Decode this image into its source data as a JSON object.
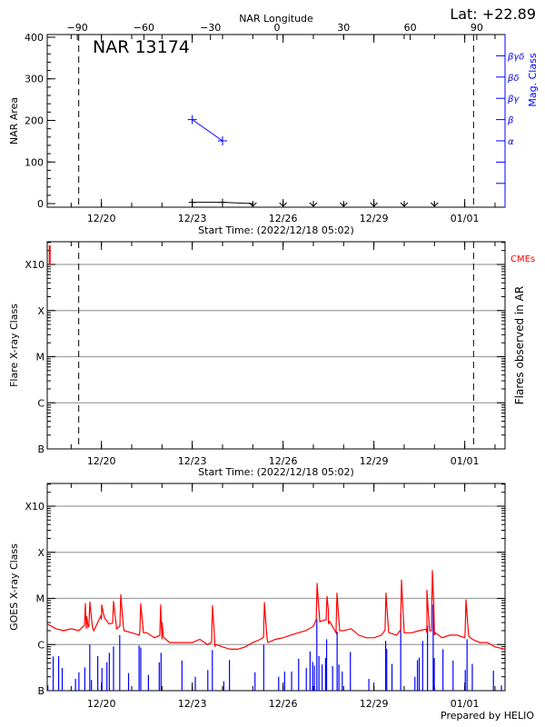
{
  "header": {
    "latitude": "Lat: +22.89",
    "region_title": "NAR 13174",
    "credit": "Prepared by HELIO"
  },
  "colors": {
    "area": "#000000",
    "mag_class": "#0000ff",
    "goes_long": "#ff0000",
    "goes_short": "#0000ff",
    "cme": "#ff0000",
    "grid": "#a0a0a0"
  },
  "chart_data": [
    {
      "type": "line",
      "title": "NAR 13174",
      "ylabel": "NAR Area",
      "xlabel": "Start Time: (2022/12/18 05:02)",
      "top_axis_label": "NAR Longitude",
      "top_axis_ticks": [
        "-90",
        "-60",
        "-30",
        "0",
        "30",
        "60",
        "90"
      ],
      "right_axis_label": "Mag. Class",
      "right_axis_ticks": [
        "α",
        "β",
        "βγ",
        "βδ",
        "βγδ"
      ],
      "x_ticks": [
        "12/20",
        "12/23",
        "12/26",
        "12/29",
        "01/01"
      ],
      "y_ticks": [
        "0",
        "100",
        "200",
        "300",
        "400"
      ],
      "ylim": [
        -8.7,
        406.5
      ],
      "limb_lines": [
        "12/19 06:00",
        "01/01 07:00"
      ],
      "area_series": [
        {
          "t": "12/23 00:00",
          "v": 3
        },
        {
          "t": "12/24 00:00",
          "v": 3
        },
        {
          "t": "12/25 00:00",
          "v": 0
        }
      ],
      "area_zero_markers": [
        "12/25 00:00",
        "12/26 00:00",
        "12/27 00:00",
        "12/28 00:00",
        "12/29 00:00",
        "12/30 00:00",
        "12/31 00:00"
      ],
      "mag_class_series": [
        {
          "t": "12/23 00:00",
          "class": "β"
        },
        {
          "t": "12/24 00:00",
          "class": "α"
        }
      ],
      "grid": false
    },
    {
      "type": "scatter",
      "ylabel": "Flare X-ray Class",
      "right_label": "Flares observed in AR",
      "cme_label": "CMEs",
      "xlabel": "Start Time: (2022/12/18 05:02)",
      "x_ticks": [
        "12/20",
        "12/23",
        "12/26",
        "12/29",
        "01/01"
      ],
      "y_ticks": [
        "B",
        "C",
        "M",
        "X",
        "X10"
      ],
      "ylim": [
        1e-07,
        0.0031
      ],
      "log_scale": true,
      "limb_lines": [
        "12/19 06:00",
        "01/01 07:00"
      ],
      "flares": [],
      "cmes": [
        "12/18 07:00"
      ],
      "grid": true
    },
    {
      "type": "line",
      "ylabel": "GOES X-ray Class",
      "x_ticks": [
        "12/20",
        "12/23",
        "12/26",
        "12/29",
        "01/01"
      ],
      "y_ticks": [
        "B",
        "C",
        "M",
        "X",
        "X10"
      ],
      "ylim": [
        1e-07,
        0.0031
      ],
      "log_scale": true,
      "grid": true,
      "series": [
        {
          "channel": "long",
          "points": [
            [
              "12/18 05:02",
              2.8e-06
            ],
            [
              "12/18 12:00",
              2.2e-06
            ],
            [
              "12/18 18:00",
              2e-06
            ],
            [
              "12/19 00:00",
              2.2e-06
            ],
            [
              "12/19 06:00",
              2e-06
            ],
            [
              "12/19 12:00",
              2.2e-06
            ],
            [
              "12/19 18:00",
              2e-06
            ],
            [
              "12/20 00:00",
              3.5e-06
            ],
            [
              "12/20 06:00",
              2.8e-06
            ],
            [
              "12/20 12:00",
              2.2e-06
            ],
            [
              "12/20 18:00",
              2e-06
            ],
            [
              "12/21 00:00",
              1.8e-06
            ],
            [
              "12/21 06:00",
              1.6e-06
            ],
            [
              "12/21 12:00",
              1.8e-06
            ],
            [
              "12/21 18:00",
              1.4e-06
            ],
            [
              "12/22 00:00",
              1.3e-06
            ],
            [
              "12/22 06:00",
              1.1e-06
            ],
            [
              "12/22 12:00",
              1.1e-06
            ],
            [
              "12/22 18:00",
              1.1e-06
            ],
            [
              "12/23 00:00",
              1.1e-06
            ],
            [
              "12/23 06:00",
              1.3e-06
            ],
            [
              "12/23 12:00",
              1e-06
            ],
            [
              "12/23 18:00",
              8.9e-07
            ],
            [
              "12/24 00:00",
              8.9e-07
            ],
            [
              "12/24 06:00",
              7.9e-07
            ],
            [
              "12/24 12:00",
              7.9e-07
            ],
            [
              "12/24 18:00",
              8.9e-07
            ],
            [
              "12/25 00:00",
              1.1e-06
            ],
            [
              "12/25 06:00",
              1.3e-06
            ],
            [
              "12/25 12:00",
              1.1e-06
            ],
            [
              "12/25 18:00",
              1.3e-06
            ],
            [
              "12/26 00:00",
              1.4e-06
            ],
            [
              "12/26 06:00",
              1.6e-06
            ],
            [
              "12/26 12:00",
              1.8e-06
            ],
            [
              "12/26 18:00",
              2e-06
            ],
            [
              "12/27 00:00",
              2.5e-06
            ],
            [
              "12/27 06:00",
              3.2e-06
            ],
            [
              "12/27 12:00",
              2.8e-06
            ],
            [
              "12/27 18:00",
              1.8e-06
            ],
            [
              "12/28 00:00",
              2e-06
            ],
            [
              "12/28 06:00",
              2.2e-06
            ],
            [
              "12/28 12:00",
              1.6e-06
            ],
            [
              "12/28 18:00",
              1.4e-06
            ],
            [
              "12/29 00:00",
              1.4e-06
            ],
            [
              "12/29 06:00",
              1.6e-06
            ],
            [
              "12/29 12:00",
              1.8e-06
            ],
            [
              "12/29 18:00",
              1.6e-06
            ],
            [
              "12/30 00:00",
              1.8e-06
            ],
            [
              "12/30 06:00",
              1.8e-06
            ],
            [
              "12/30 12:00",
              2e-06
            ],
            [
              "12/30 18:00",
              1.8e-06
            ],
            [
              "12/31 00:00",
              1.6e-06
            ],
            [
              "12/31 06:00",
              1.4e-06
            ],
            [
              "12/31 12:00",
              1.6e-06
            ],
            [
              "12/31 18:00",
              1.6e-06
            ],
            [
              "01/01 00:00",
              1.4e-06
            ],
            [
              "01/01 06:00",
              1.3e-06
            ],
            [
              "01/01 12:00",
              1.1e-06
            ],
            [
              "01/01 18:00",
              1.1e-06
            ],
            [
              "01/02 00:00",
              8.9e-07
            ],
            [
              "01/02 08:00",
              7.9e-07
            ]
          ],
          "peaks": [
            [
              "12/19 11:15",
              7.7e-06
            ],
            [
              "12/19 14:50",
              8.3e-06
            ],
            [
              "12/20 00:15",
              7.2e-06
            ],
            [
              "12/20 09:35",
              8.6e-06
            ],
            [
              "12/20 15:20",
              1.2e-05
            ],
            [
              "12/21 07:10",
              7.7e-06
            ],
            [
              "12/21 23:00",
              7.2e-06
            ],
            [
              "12/23 16:00",
              6.9e-06
            ],
            [
              "12/25 09:10",
              8.1e-06
            ],
            [
              "12/27 03:00",
              2.1e-05
            ],
            [
              "12/27 10:50",
              1.1e-05
            ],
            [
              "12/27 18:45",
              1.3e-05
            ],
            [
              "12/29 09:35",
              1.3e-05
            ],
            [
              "12/29 21:50",
              2.5e-05
            ],
            [
              "12/30 18:00",
              1.5e-05
            ],
            [
              "12/30 22:20",
              4e-05
            ],
            [
              "01/01 01:00",
              9.3e-06
            ]
          ]
        },
        {
          "channel": "short",
          "bars": [
            [
              "12/18 05:30",
              1.3e-07
            ],
            [
              "12/18 09:45",
              5.5e-07
            ],
            [
              "12/18 14:05",
              5.6e-07
            ],
            [
              "12/18 16:55",
              3.1e-07
            ],
            [
              "12/19 03:25",
              1.8e-07
            ],
            [
              "12/19 06:10",
              2.5e-07
            ],
            [
              "12/19 10:50",
              3.2e-07
            ],
            [
              "12/19 14:45",
              1e-06
            ],
            [
              "12/19 16:05",
              1.7e-07
            ],
            [
              "12/19 21:05",
              5.6e-07
            ],
            [
              "12/20 00:25",
              3.1e-07
            ],
            [
              "12/20 04:20",
              4.1e-07
            ],
            [
              "12/20 06:15",
              6.6e-07
            ],
            [
              "12/20 09:35",
              9.1e-07
            ],
            [
              "12/20 14:30",
              1.6e-06
            ],
            [
              "12/20 21:30",
              2.4e-07
            ],
            [
              "12/21 05:50",
              9.5e-07
            ],
            [
              "12/21 07:10",
              8.6e-07
            ],
            [
              "12/21 13:15",
              2.2e-07
            ],
            [
              "12/21 21:50",
              4.1e-07
            ],
            [
              "12/21 23:15",
              6.6e-07
            ],
            [
              "12/22 15:50",
              4.5e-07
            ],
            [
              "12/23 02:25",
              2e-07
            ],
            [
              "12/23 12:20",
              2.8e-07
            ],
            [
              "12/23 15:55",
              7.6e-07
            ],
            [
              "12/24 01:00",
              1.6e-07
            ],
            [
              "12/24 05:30",
              4.6e-07
            ],
            [
              "12/25 01:45",
              2.5e-07
            ],
            [
              "12/25 08:40",
              1e-06
            ],
            [
              "12/25 20:30",
              2e-07
            ],
            [
              "12/26 01:15",
              2.6e-07
            ],
            [
              "12/26 06:45",
              2.6e-07
            ],
            [
              "12/26 12:20",
              4.9e-07
            ],
            [
              "12/26 18:25",
              3.1e-07
            ],
            [
              "12/26 21:25",
              7.1e-07
            ],
            [
              "12/26 23:25",
              4.2e-07
            ],
            [
              "12/27 00:50",
              3.5e-07
            ],
            [
              "12/27 02:45",
              3.6e-06
            ],
            [
              "12/27 04:25",
              5.6e-07
            ],
            [
              "12/27 06:55",
              3.7e-07
            ],
            [
              "12/27 09:40",
              5.1e-07
            ],
            [
              "12/27 10:30",
              1.3e-06
            ],
            [
              "12/27 15:15",
              3.4e-07
            ],
            [
              "12/27 18:50",
              1.9e-06
            ],
            [
              "12/27 20:15",
              3.7e-07
            ],
            [
              "12/27 22:55",
              2.6e-07
            ],
            [
              "12/28 05:20",
              6.9e-07
            ],
            [
              "12/28 20:00",
              1.8e-07
            ],
            [
              "12/29 09:20",
              1.2e-06
            ],
            [
              "12/29 10:10",
              8.1e-07
            ],
            [
              "12/29 14:20",
              3.8e-07
            ],
            [
              "12/29 21:15",
              4.7e-06
            ],
            [
              "12/30 08:30",
              2e-07
            ],
            [
              "12/30 10:30",
              4.6e-07
            ],
            [
              "12/30 11:55",
              5.2e-07
            ],
            [
              "12/30 14:40",
              1.2e-06
            ],
            [
              "12/30 18:30",
              2.6e-06
            ],
            [
              "12/30 23:00",
              7.4e-06
            ],
            [
              "12/30 23:50",
              5.1e-07
            ],
            [
              "12/31 06:45",
              7.9e-07
            ],
            [
              "12/31 14:45",
              4.5e-07
            ],
            [
              "01/01 00:25",
              2.8e-07
            ],
            [
              "01/01 01:50",
              1.3e-06
            ],
            [
              "01/01 06:00",
              3.8e-07
            ],
            [
              "01/01 22:45",
              2.7e-07
            ],
            [
              "01/02 05:05",
              1.3e-07
            ]
          ]
        }
      ]
    }
  ]
}
